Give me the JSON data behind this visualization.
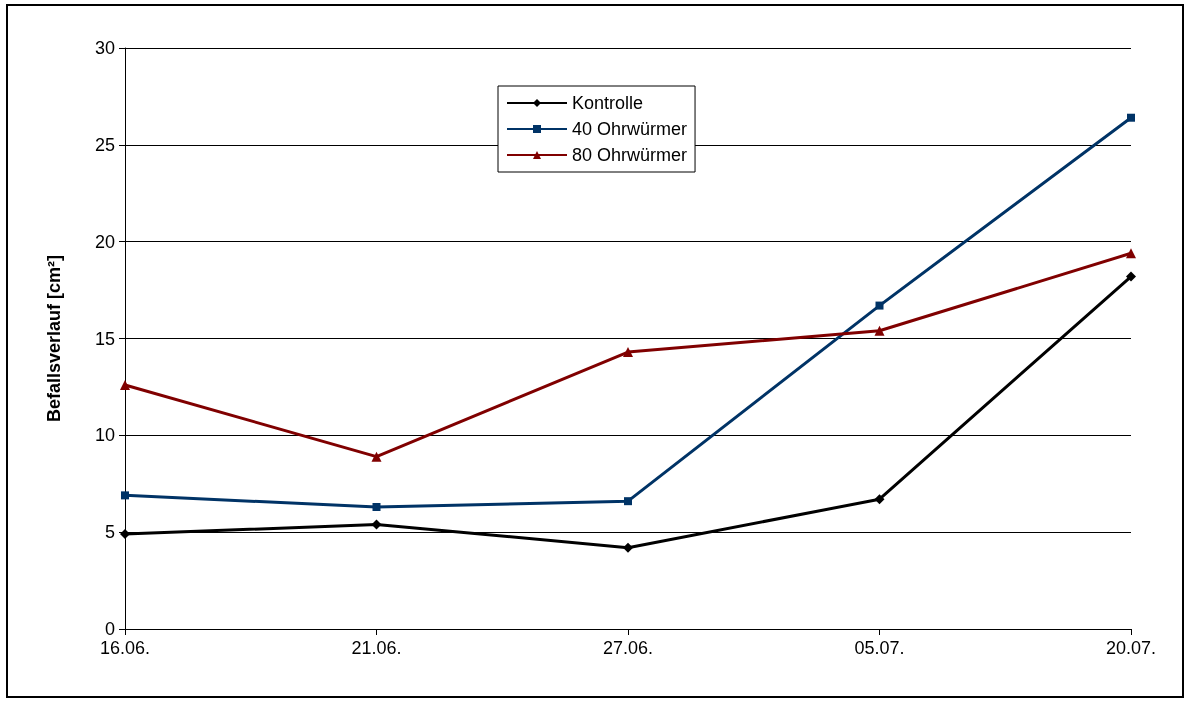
{
  "chart_data": {
    "type": "line",
    "ylabel": "Befallsverlauf [cm²]",
    "categories": [
      "16.06.",
      "21.06.",
      "27.06.",
      "05.07.",
      "20.07."
    ],
    "ylim": [
      0,
      30
    ],
    "yticks": [
      0,
      5,
      10,
      15,
      20,
      25,
      30
    ],
    "grid": "y",
    "legend": "top",
    "line_style": "solid",
    "series": [
      {
        "name": "Kontrolle",
        "color": "#000000",
        "marker": "diamond",
        "values": [
          4.9,
          5.4,
          4.2,
          6.7,
          18.2
        ]
      },
      {
        "name": "40 Ohrwürmer",
        "color": "#003366",
        "marker": "square",
        "values": [
          6.9,
          6.3,
          6.6,
          16.7,
          26.4
        ]
      },
      {
        "name": "80 Ohrwürmer",
        "color": "#800000",
        "marker": "triangle",
        "values": [
          12.6,
          8.9,
          14.3,
          15.4,
          19.4
        ]
      }
    ]
  }
}
